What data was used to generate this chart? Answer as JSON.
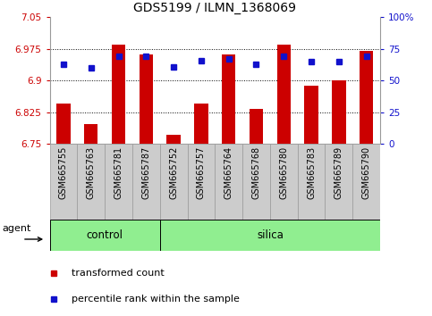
{
  "title": "GDS5199 / ILMN_1368069",
  "samples": [
    "GSM665755",
    "GSM665763",
    "GSM665781",
    "GSM665787",
    "GSM665752",
    "GSM665757",
    "GSM665764",
    "GSM665768",
    "GSM665780",
    "GSM665783",
    "GSM665789",
    "GSM665790"
  ],
  "control_count": 4,
  "bar_values": [
    6.845,
    6.797,
    6.985,
    6.963,
    6.771,
    6.845,
    6.963,
    6.832,
    6.985,
    6.887,
    6.9,
    6.97
  ],
  "bar_base": 6.75,
  "blue_dots_pct": [
    63,
    60,
    69,
    69,
    61,
    66,
    67,
    63,
    69,
    65,
    65,
    69
  ],
  "ylim_left": [
    6.75,
    7.05
  ],
  "ylim_right": [
    0,
    100
  ],
  "yticks_left": [
    6.75,
    6.825,
    6.9,
    6.975,
    7.05
  ],
  "yticks_right": [
    0,
    25,
    50,
    75,
    100
  ],
  "ytick_labels_left": [
    "6.75",
    "6.825",
    "6.9",
    "6.975",
    "7.05"
  ],
  "ytick_labels_right": [
    "0",
    "25",
    "50",
    "75",
    "100%"
  ],
  "bar_color": "#CC0000",
  "dot_color": "#1111CC",
  "group_fill": "#90EE90",
  "group_edge": "#000000",
  "sample_box_fill": "#CCCCCC",
  "sample_box_edge": "#999999",
  "agent_label": "agent",
  "control_label": "control",
  "silica_label": "silica",
  "legend_items": [
    "transformed count",
    "percentile rank within the sample"
  ],
  "legend_colors": [
    "#CC0000",
    "#1111CC"
  ],
  "title_fontsize": 10,
  "tick_fontsize": 7.5,
  "legend_fontsize": 8,
  "group_fontsize": 8.5,
  "agent_fontsize": 8
}
